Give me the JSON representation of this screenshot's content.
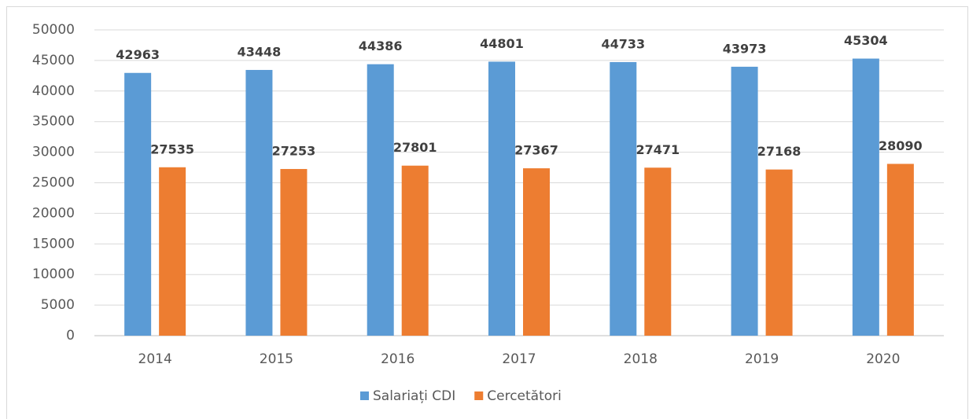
{
  "chart_data": {
    "type": "bar",
    "categories": [
      "2014",
      "2015",
      "2016",
      "2017",
      "2018",
      "2019",
      "2020"
    ],
    "series": [
      {
        "name": "Salariați CDI",
        "color": "#5b9bd5",
        "values": [
          42963,
          43448,
          44386,
          44801,
          44733,
          43973,
          45304
        ]
      },
      {
        "name": "Cercetători",
        "color": "#ed7d31",
        "values": [
          27535,
          27253,
          27801,
          27367,
          27471,
          27168,
          28090
        ]
      }
    ],
    "ylim": [
      0,
      50000
    ],
    "yticks": [
      0,
      5000,
      10000,
      15000,
      20000,
      25000,
      30000,
      35000,
      40000,
      45000,
      50000
    ],
    "grid": true,
    "legend": "bottom",
    "data_labels": true
  }
}
